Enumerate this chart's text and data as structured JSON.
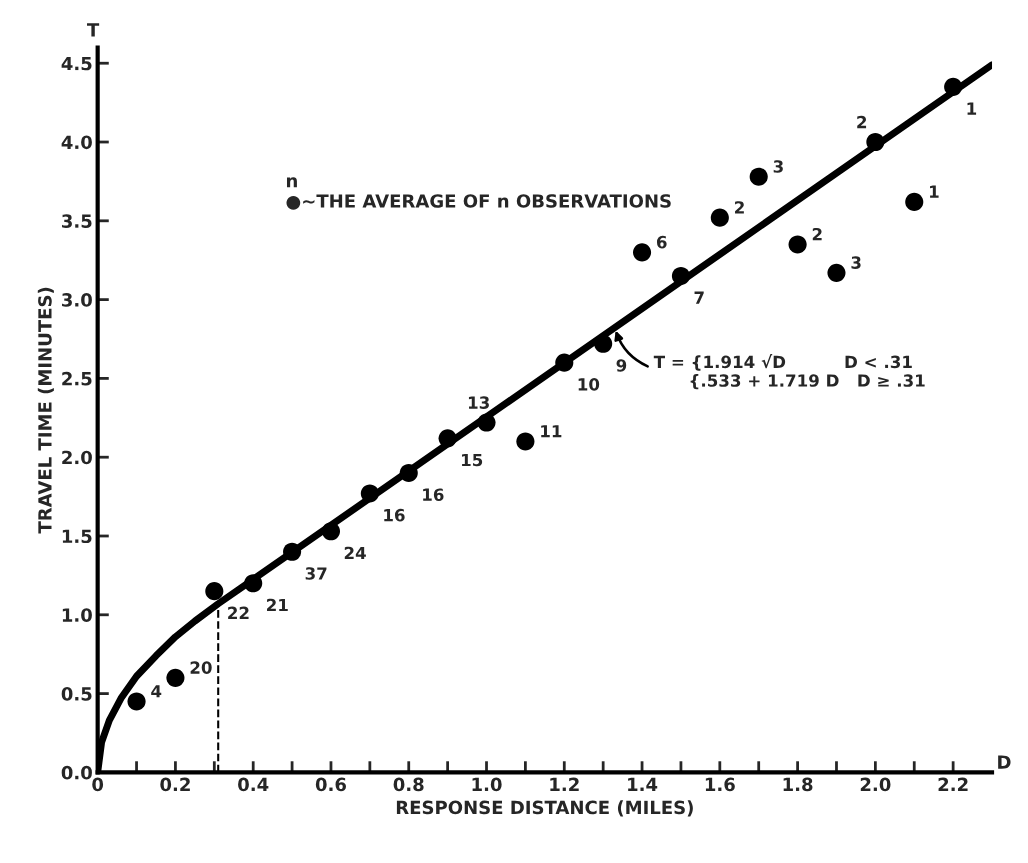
{
  "chart_data": {
    "type": "scatter",
    "xlabel": "RESPONSE DISTANCE (MILES)",
    "ylabel": "TRAVEL TIME (MINUTES)",
    "xlim": [
      0,
      2.3
    ],
    "ylim": [
      0,
      4.6
    ],
    "xticks": [
      {
        "value": 0,
        "label": "0"
      },
      {
        "value": 0.1,
        "label": null
      },
      0.2,
      {
        "value": 0.3,
        "label": null
      },
      0.4,
      {
        "value": 0.5,
        "label": null
      },
      0.6,
      {
        "value": 0.7,
        "label": null
      },
      0.8,
      {
        "value": 0.9,
        "label": null
      },
      {
        "value": 1.0,
        "label": "1.0"
      },
      {
        "value": 1.1,
        "label": null
      },
      1.2,
      {
        "value": 1.3,
        "label": null
      },
      1.4,
      {
        "value": 1.5,
        "label": null
      },
      1.6,
      {
        "value": 1.7,
        "label": null
      },
      1.8,
      {
        "value": 1.9,
        "label": null
      },
      {
        "value": 2.0,
        "label": "2.0"
      },
      {
        "value": 2.1,
        "label": null
      },
      2.2
    ],
    "yticks": [
      {
        "value": 0,
        "label": "0.0"
      },
      0.5,
      {
        "value": 1,
        "label": "1.0"
      },
      1.5,
      {
        "value": 2,
        "label": "2.0"
      },
      2.5,
      {
        "value": 3,
        "label": "3.0"
      },
      3.5,
      {
        "value": 4,
        "label": "4.0"
      },
      4.5
    ],
    "grid": false,
    "marker": "circle",
    "series": [
      {
        "color": "#000000",
        "x": [
          0.1,
          0.2,
          0.3,
          0.4,
          0.5,
          0.6,
          0.7,
          0.8,
          0.9,
          1.0,
          1.1,
          1.2,
          1.3,
          1.4,
          1.5,
          1.6,
          1.7,
          1.8,
          1.9,
          2.0,
          2.1,
          2.2
        ],
        "values": [
          0.45,
          0.6,
          1.15,
          1.2,
          1.4,
          1.53,
          1.77,
          1.9,
          2.12,
          2.22,
          2.1,
          2.6,
          2.72,
          3.3,
          3.15,
          3.52,
          3.78,
          3.35,
          3.17,
          4.0,
          3.62,
          4.35
        ]
      },
      {
        "type": "line",
        "color": "#000000",
        "marker": "none",
        "line_style": "solid",
        "x": [
          0,
          0.01,
          0.03,
          0.06,
          0.1,
          0.15,
          0.2,
          0.25,
          0.31,
          2.3
        ],
        "values": [
          0,
          0.19,
          0.33,
          0.47,
          0.61,
          0.74,
          0.86,
          0.96,
          1.07,
          4.49
        ]
      }
    ],
    "ref_lines": [
      {
        "axis": "x",
        "value": 0.31,
        "line_style": "dashed",
        "color": "#000000"
      }
    ],
    "annotations": [
      "n\n●~THE AVERAGE OF n OBSERVATIONS",
      "T",
      "D",
      {
        "text": "T = {1.914 √D          D < .31\n      {.533 + 1.719 D   D ≥ .31",
        "x": 1.33,
        "y": 2.82
      },
      {
        "text": "4",
        "x": 0.1,
        "y": 0.45
      },
      {
        "text": "20",
        "x": 0.2,
        "y": 0.6
      },
      {
        "text": "22",
        "x": 0.3,
        "y": 1.15
      },
      {
        "text": "21",
        "x": 0.4,
        "y": 1.2
      },
      {
        "text": "37",
        "x": 0.5,
        "y": 1.4
      },
      {
        "text": "24",
        "x": 0.6,
        "y": 1.53
      },
      {
        "text": "16",
        "x": 0.7,
        "y": 1.77
      },
      {
        "text": "16",
        "x": 0.8,
        "y": 1.9
      },
      {
        "text": "15",
        "x": 0.9,
        "y": 2.12
      },
      {
        "text": "13",
        "x": 1.0,
        "y": 2.22
      },
      {
        "text": "11",
        "x": 1.1,
        "y": 2.1
      },
      {
        "text": "10",
        "x": 1.2,
        "y": 2.6
      },
      {
        "text": "9",
        "x": 1.3,
        "y": 2.72
      },
      {
        "text": "6",
        "x": 1.4,
        "y": 3.3
      },
      {
        "text": "7",
        "x": 1.5,
        "y": 3.15
      },
      {
        "text": "2",
        "x": 1.6,
        "y": 3.52
      },
      {
        "text": "3",
        "x": 1.7,
        "y": 3.78
      },
      {
        "text": "2",
        "x": 1.8,
        "y": 3.35
      },
      {
        "text": "3",
        "x": 1.9,
        "y": 3.17
      },
      {
        "text": "2",
        "x": 2.0,
        "y": 4.0
      },
      {
        "text": "1",
        "x": 2.1,
        "y": 3.62
      },
      {
        "text": "1",
        "x": 2.2,
        "y": 4.35
      }
    ]
  }
}
